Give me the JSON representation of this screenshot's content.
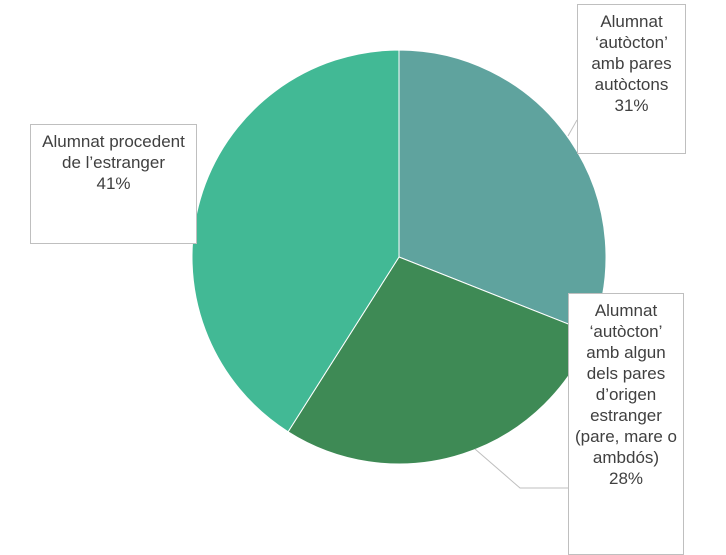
{
  "chart_data": {
    "type": "pie",
    "categories": [
      "Alumnat ‘autòcton’ amb pares autòctons",
      "Alumnat ‘autòcton’ amb algun dels pares d’origen estranger (pare, mare o ambdós)",
      "Alumnat procedent de l’estranger"
    ],
    "values": [
      31,
      28,
      41
    ],
    "value_labels": [
      "31%",
      "28%",
      "41%"
    ],
    "colors": [
      "#5fa39e",
      "#3e8a55",
      "#42b995"
    ]
  }
}
